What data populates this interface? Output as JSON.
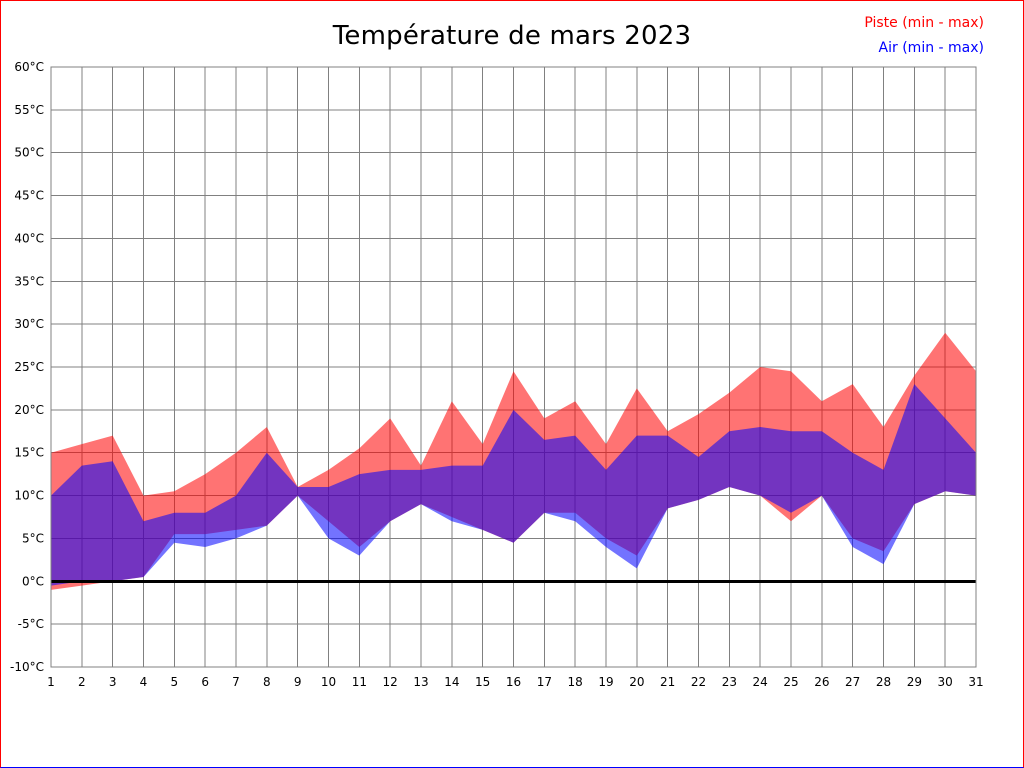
{
  "frame": {
    "border_color": "#ff0000",
    "border_bottom_color": "#0000ff"
  },
  "legend": {
    "piste_label": "Piste (min - max)",
    "air_label": "Air (min - max)"
  },
  "chart_data": {
    "type": "area",
    "title": "Température de mars 2023",
    "xlabel": "",
    "ylabel": "",
    "y_unit": "°C",
    "ylim": [
      -10,
      60
    ],
    "ytick_step": 5,
    "grid": true,
    "grid_color": "#808080",
    "zero_line": true,
    "zero_line_color": "#000000",
    "legend_position": "top-right",
    "x": [
      1,
      2,
      3,
      4,
      5,
      6,
      7,
      8,
      9,
      10,
      11,
      12,
      13,
      14,
      15,
      16,
      17,
      18,
      19,
      20,
      21,
      22,
      23,
      24,
      25,
      26,
      27,
      28,
      29,
      30,
      31
    ],
    "series": [
      {
        "key": "piste",
        "name": "Piste (min - max)",
        "color": "#ff0000",
        "fill": "rgba(255,0,0,0.55)",
        "max": [
          15,
          16,
          17,
          10,
          10.5,
          12.5,
          15,
          18,
          11,
          13,
          15.5,
          19,
          13.5,
          21,
          16,
          24.5,
          19,
          21,
          16,
          22.5,
          17.5,
          19.5,
          22,
          25,
          24.5,
          21,
          23,
          18,
          24,
          29,
          24.5
        ],
        "min": [
          -1,
          -0.5,
          0,
          0.5,
          5.5,
          5.5,
          6,
          6.5,
          10,
          7,
          4,
          7,
          9,
          7.5,
          6,
          4.5,
          8,
          8,
          5,
          3,
          8.5,
          9.5,
          11,
          10,
          7,
          10,
          5,
          3.5,
          9,
          10.5,
          10
        ]
      },
      {
        "key": "air",
        "name": "Air (min - max)",
        "color": "#0000ff",
        "fill": "rgba(0,0,255,0.55)",
        "max": [
          10,
          13.5,
          14,
          7,
          8,
          8,
          10,
          15,
          11,
          11,
          12.5,
          13,
          13,
          13.5,
          13.5,
          20,
          16.5,
          17,
          13,
          17,
          17,
          14.5,
          17.5,
          18,
          17.5,
          17.5,
          15,
          13,
          23,
          19,
          15
        ],
        "min": [
          -0.5,
          0,
          0,
          0.5,
          4.5,
          4,
          5,
          6.5,
          10,
          5,
          3,
          7,
          9,
          7,
          6,
          4.5,
          8,
          7,
          4,
          1.5,
          8.5,
          9.5,
          11,
          10,
          8,
          10,
          4,
          2,
          9,
          10.5,
          10
        ]
      }
    ]
  }
}
